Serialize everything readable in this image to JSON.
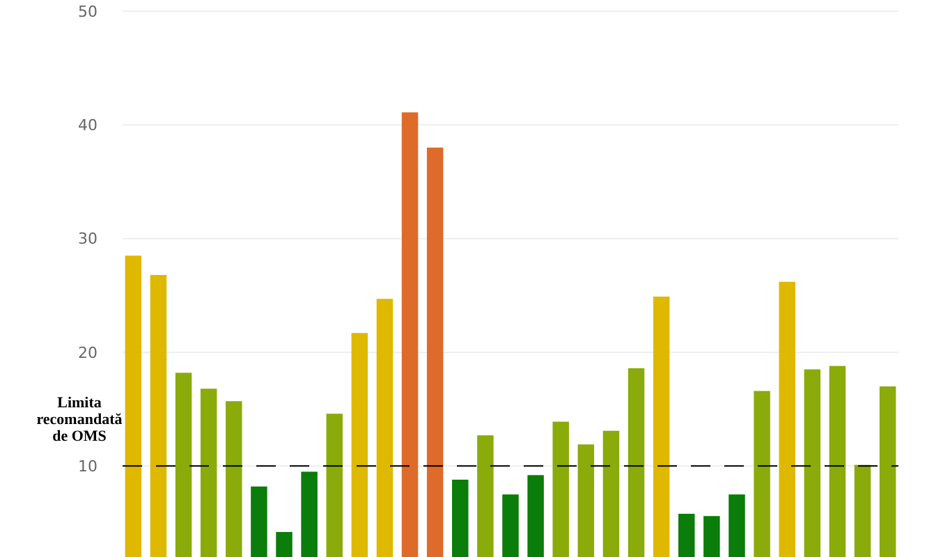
{
  "chart_data": {
    "type": "bar",
    "categories": [
      null,
      null,
      null,
      null,
      null,
      null,
      null,
      null,
      null,
      null,
      null,
      null,
      null,
      null,
      null,
      null,
      null,
      null,
      null,
      null,
      null,
      null,
      null,
      null,
      null,
      null,
      null,
      null,
      null,
      null,
      null
    ],
    "values": [
      28.5,
      26.8,
      18.2,
      16.8,
      15.7,
      8.2,
      4.2,
      9.5,
      14.6,
      21.7,
      24.7,
      41.1,
      38.0,
      8.8,
      12.7,
      7.5,
      9.2,
      13.9,
      11.9,
      13.1,
      18.6,
      24.9,
      5.8,
      5.6,
      7.5,
      16.6,
      26.2,
      18.5,
      18.8,
      10.1,
      17.0
    ],
    "colors": [
      "#dfb800",
      "#dfb800",
      "#8aab0a",
      "#8aab0a",
      "#8aab0a",
      "#0a7d0a",
      "#0a7d0a",
      "#0a7d0a",
      "#8aab0a",
      "#dfb800",
      "#dfb800",
      "#de6b2a",
      "#de6b2a",
      "#0a7d0a",
      "#8aab0a",
      "#0a7d0a",
      "#0a7d0a",
      "#8aab0a",
      "#8aab0a",
      "#8aab0a",
      "#8aab0a",
      "#dfb800",
      "#0a7d0a",
      "#0a7d0a",
      "#0a7d0a",
      "#8aab0a",
      "#dfb800",
      "#8aab0a",
      "#8aab0a",
      "#8aab0a",
      "#8aab0a"
    ],
    "ylim": [
      2,
      50
    ],
    "yticks": [
      10,
      20,
      30,
      40,
      50
    ],
    "grid": "y",
    "ref_lines": [
      {
        "axis": "y",
        "value": 10,
        "label": "Limita recomandată de OMS",
        "color": "#000000",
        "line_style": "dashed"
      }
    ]
  }
}
